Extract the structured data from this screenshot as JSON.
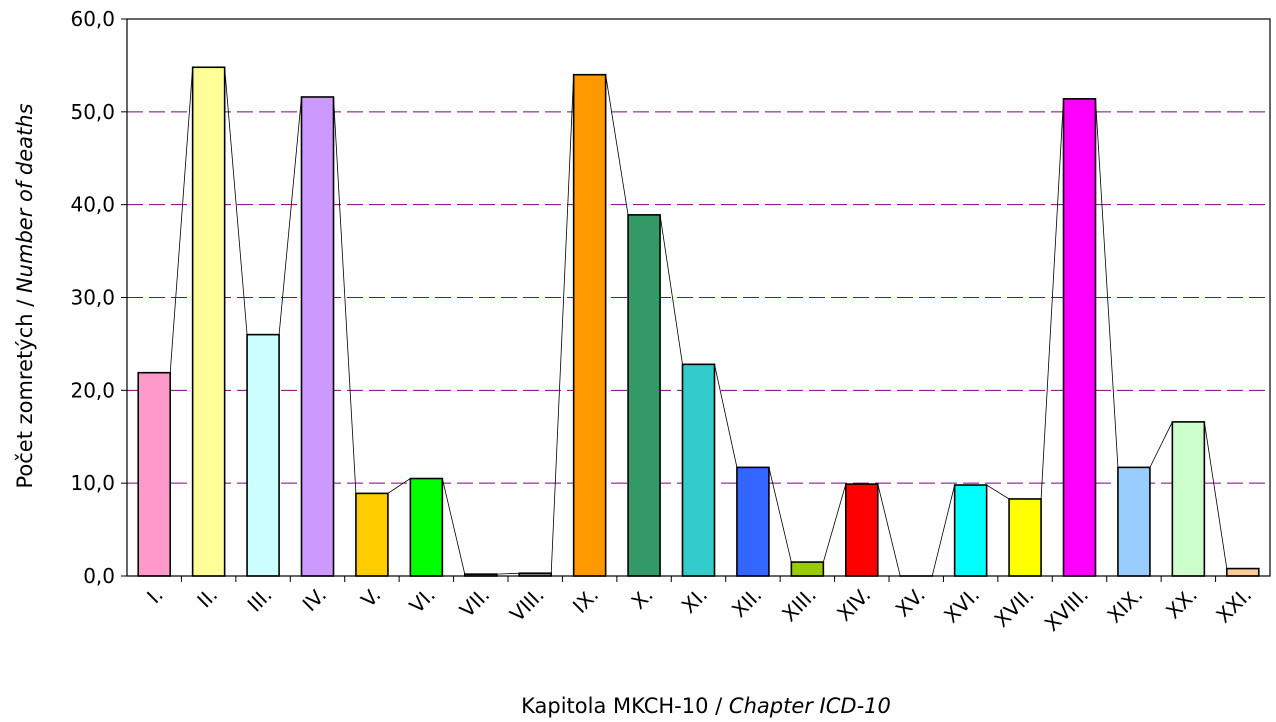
{
  "chart_data": {
    "type": "bar",
    "title": "",
    "xlabel": {
      "main": "Kapitola MKCH-10 / ",
      "italic": "Chapter ICD-10"
    },
    "ylabel": {
      "main": "Počet zomretých / ",
      "italic": "Number of deaths"
    },
    "categories": [
      "I.",
      "II.",
      "III.",
      "IV.",
      "V.",
      "VI.",
      "VII.",
      "VIII.",
      "IX.",
      "X.",
      "XI.",
      "XII.",
      "XIII.",
      "XIV.",
      "XV.",
      "XVI.",
      "XVII.",
      "XVIII.",
      "XIX.",
      "XX.",
      "XXI."
    ],
    "values": [
      21.9,
      54.8,
      26.0,
      51.6,
      8.9,
      10.5,
      0.2,
      0.3,
      54.0,
      38.9,
      22.8,
      11.7,
      1.5,
      9.9,
      0.0,
      9.8,
      8.3,
      51.4,
      11.7,
      16.6,
      0.8
    ],
    "colors": [
      "#FF99CC",
      "#FFFF99",
      "#CCFFFF",
      "#CC99FF",
      "#FFCC00",
      "#00FF00",
      "#808080",
      "#808080",
      "#FF9900",
      "#339966",
      "#33CCCC",
      "#3366FF",
      "#99CC00",
      "#FF0000",
      "#FFFFFF",
      "#00FFFF",
      "#FFFF00",
      "#FF00FF",
      "#99CCFF",
      "#CCFFCC",
      "#FFCC99"
    ],
    "ylim": [
      0,
      60
    ],
    "yticks": [
      "0,0",
      "10,0",
      "20,0",
      "30,0",
      "40,0",
      "50,0",
      "60,0"
    ],
    "gridline_color": "#800080",
    "grid": "horizontal dashed",
    "connector_line": true
  }
}
